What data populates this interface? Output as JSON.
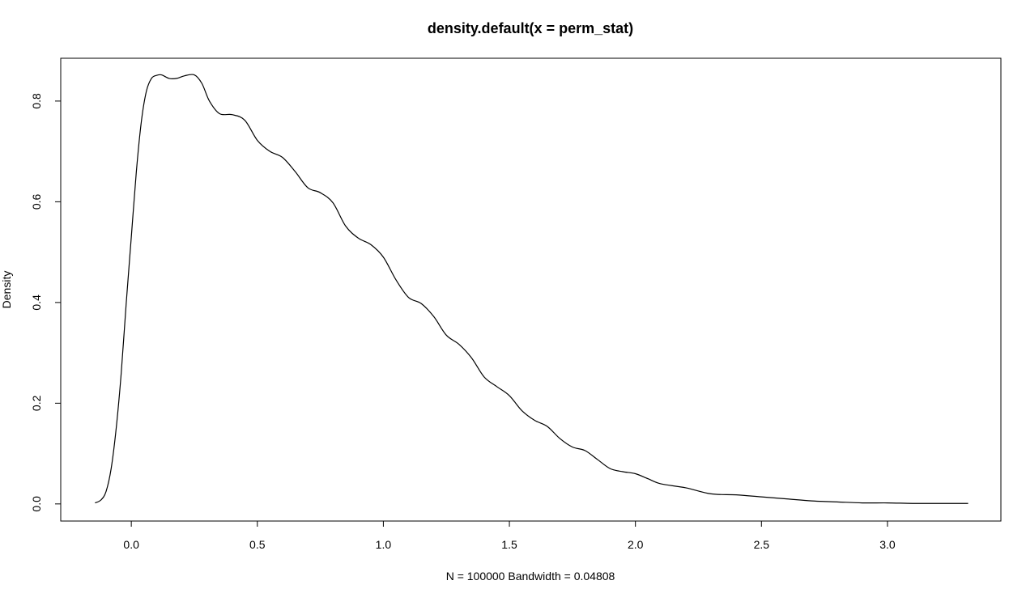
{
  "chart_data": {
    "type": "line",
    "title": "density.default(x = perm_stat)",
    "xlabel": "N = 100000   Bandwidth = 0.04808",
    "ylabel": "Density",
    "xlim": [
      -0.28,
      3.45
    ],
    "ylim": [
      -0.034,
      0.885
    ],
    "x_ticks": [
      "0.0",
      "0.5",
      "1.0",
      "1.5",
      "2.0",
      "2.5",
      "3.0"
    ],
    "x_tick_values": [
      0.0,
      0.5,
      1.0,
      1.5,
      2.0,
      2.5,
      3.0
    ],
    "y_ticks": [
      "0.0",
      "0.2",
      "0.4",
      "0.6",
      "0.8"
    ],
    "y_tick_values": [
      0.0,
      0.2,
      0.4,
      0.6,
      0.8
    ],
    "grid": false,
    "series": [
      {
        "color": "#000000",
        "x": [
          -0.144,
          -0.12,
          -0.1,
          -0.08,
          -0.06,
          -0.04,
          -0.02,
          0.0,
          0.02,
          0.04,
          0.06,
          0.08,
          0.1,
          0.12,
          0.15,
          0.18,
          0.21,
          0.25,
          0.28,
          0.31,
          0.35,
          0.4,
          0.45,
          0.5,
          0.55,
          0.6,
          0.65,
          0.7,
          0.75,
          0.8,
          0.85,
          0.9,
          0.95,
          1.0,
          1.05,
          1.1,
          1.15,
          1.2,
          1.25,
          1.3,
          1.35,
          1.4,
          1.45,
          1.5,
          1.55,
          1.6,
          1.65,
          1.7,
          1.75,
          1.8,
          1.85,
          1.9,
          1.95,
          2.0,
          2.05,
          2.1,
          2.2,
          2.3,
          2.4,
          2.5,
          2.6,
          2.7,
          2.8,
          2.9,
          3.0,
          3.1,
          3.2,
          3.32
        ],
        "y": [
          0.002,
          0.008,
          0.025,
          0.07,
          0.15,
          0.26,
          0.4,
          0.53,
          0.66,
          0.76,
          0.82,
          0.845,
          0.851,
          0.852,
          0.845,
          0.845,
          0.85,
          0.852,
          0.835,
          0.8,
          0.775,
          0.773,
          0.762,
          0.722,
          0.7,
          0.688,
          0.66,
          0.628,
          0.618,
          0.598,
          0.552,
          0.528,
          0.515,
          0.49,
          0.445,
          0.41,
          0.398,
          0.372,
          0.335,
          0.317,
          0.29,
          0.252,
          0.233,
          0.215,
          0.185,
          0.166,
          0.154,
          0.13,
          0.113,
          0.106,
          0.088,
          0.07,
          0.064,
          0.06,
          0.05,
          0.04,
          0.032,
          0.02,
          0.018,
          0.014,
          0.01,
          0.006,
          0.004,
          0.002,
          0.002,
          0.001,
          0.001,
          0.001
        ]
      }
    ]
  }
}
